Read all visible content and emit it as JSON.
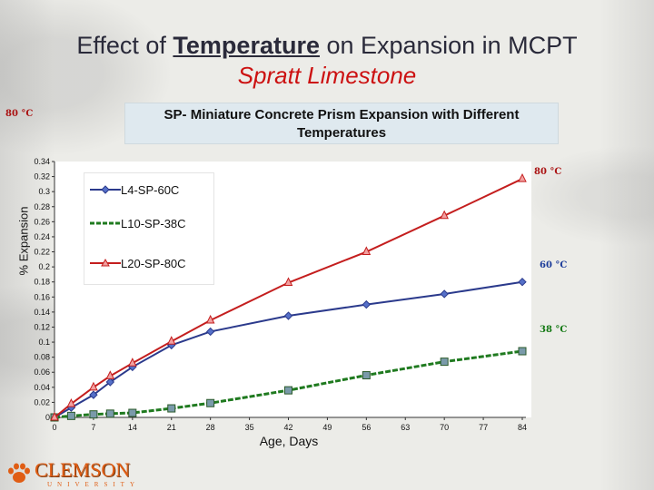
{
  "slide": {
    "title_prefix": "Effect of ",
    "title_emphasis": "Temperature",
    "title_suffix": " on Expansion in MCPT",
    "subtitle": "Spratt Limestone",
    "logo_text": "CLEMSON",
    "logo_subtext": "UNIVERSITY"
  },
  "annotations": {
    "top_left": "80 °C",
    "end_80": "80 °C",
    "end_60": "60 °C",
    "end_38": "38 °C",
    "color_80": "#aa1111",
    "color_60": "#1a3a99",
    "color_38": "#117711"
  },
  "chart_data": {
    "type": "line",
    "title": "SP- Miniature Concrete Prism Expansion with Different Temperatures",
    "xlabel": "Age, Days",
    "ylabel": "% Expansion",
    "xlim": [
      0,
      84
    ],
    "ylim": [
      0,
      0.34
    ],
    "xticks": [
      0,
      7,
      14,
      21,
      28,
      35,
      42,
      49,
      56,
      63,
      70,
      77,
      84
    ],
    "yticks": [
      "0",
      "0.02",
      "0.04",
      "0.06",
      "0.08",
      "0.1",
      "0.12",
      "0.14",
      "0.16",
      "0.18",
      "0.2",
      "0.22",
      "0.24",
      "0.26",
      "0.28",
      "0.3",
      "0.32",
      "0.34"
    ],
    "legend": "upper-left",
    "series": [
      {
        "name": "L4-SP-60C",
        "color": "#2b3a8c",
        "marker": "diamond",
        "x": [
          0,
          3,
          7,
          10,
          14,
          21,
          28,
          42,
          56,
          70,
          84
        ],
        "y": [
          0,
          0.013,
          0.03,
          0.047,
          0.067,
          0.096,
          0.114,
          0.135,
          0.15,
          0.164,
          0.18
        ]
      },
      {
        "name": "L10-SP-38C",
        "color": "#1f7a1f",
        "marker": "square",
        "x": [
          0,
          3,
          7,
          10,
          14,
          21,
          28,
          42,
          56,
          70,
          84
        ],
        "y": [
          0,
          0.002,
          0.004,
          0.005,
          0.006,
          0.012,
          0.019,
          0.036,
          0.056,
          0.074,
          0.088
        ]
      },
      {
        "name": "L20-SP-80C",
        "color": "#c41e1e",
        "marker": "triangle",
        "x": [
          0,
          3,
          7,
          10,
          14,
          21,
          28,
          42,
          56,
          70,
          84
        ],
        "y": [
          0,
          0.018,
          0.04,
          0.055,
          0.072,
          0.101,
          0.129,
          0.179,
          0.22,
          0.268,
          0.317
        ]
      }
    ]
  }
}
